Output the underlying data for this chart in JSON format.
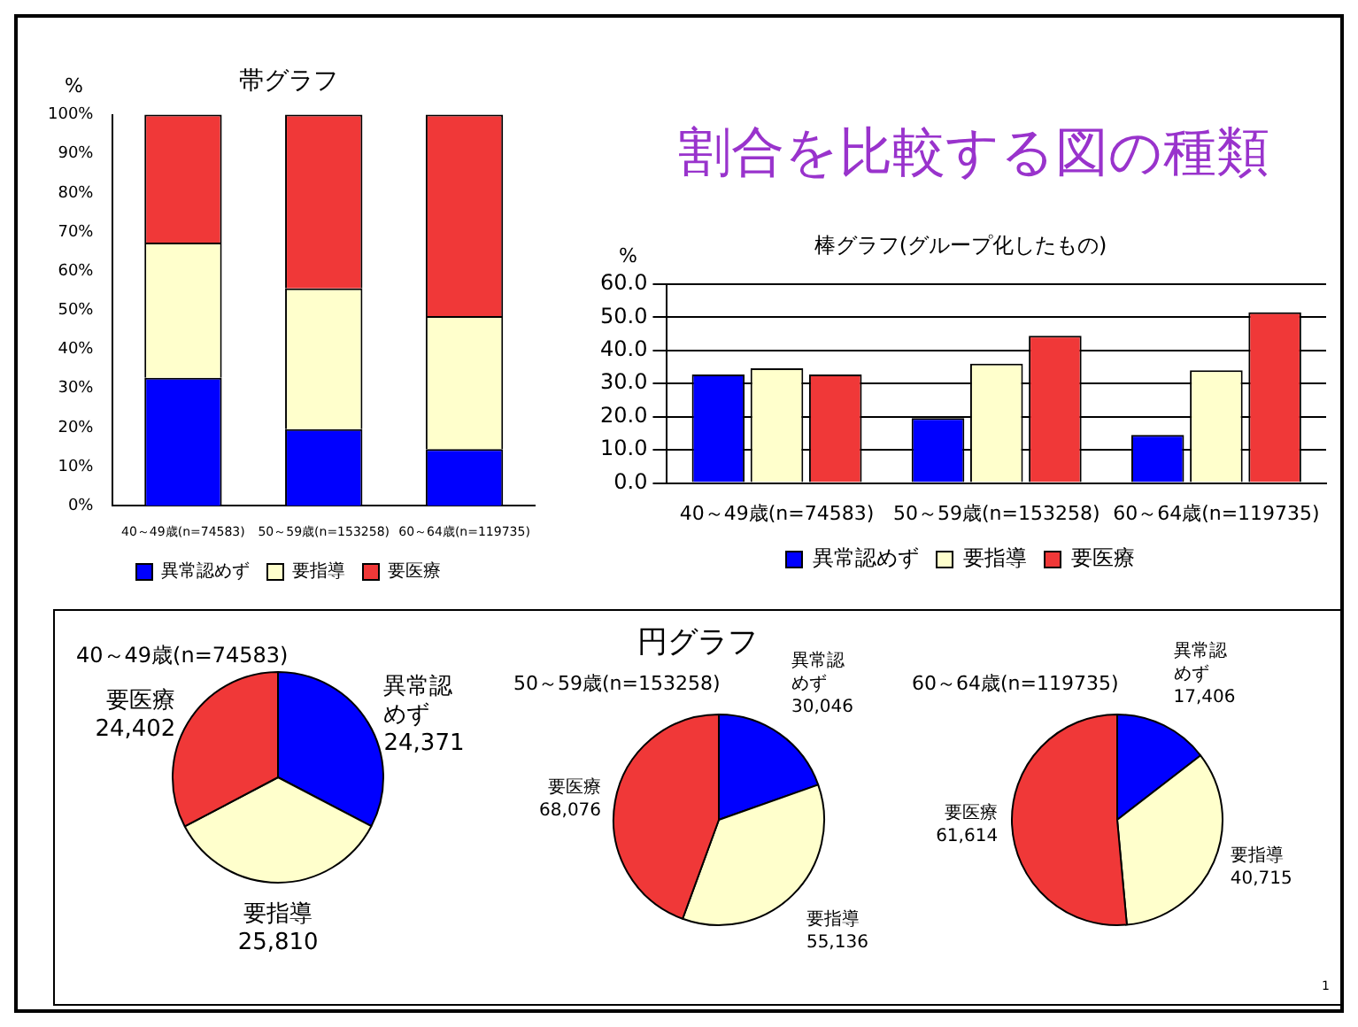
{
  "chart_data": [
    {
      "type": "bar",
      "title": "帯グラフ",
      "ylabel": "%",
      "stacked": true,
      "categories": [
        "40～49歳(n=74583)",
        "50～59歳(n=153258)",
        "60～64歳(n=119735)"
      ],
      "series": [
        {
          "name": "異常認めず",
          "color": "#0000ff",
          "values": [
            32.7,
            19.6,
            14.5
          ]
        },
        {
          "name": "要指導",
          "color": "#ffffcc",
          "values": [
            34.6,
            36.0,
            34.0
          ]
        },
        {
          "name": "要医療",
          "color": "#f03838",
          "values": [
            32.7,
            44.4,
            51.5
          ]
        }
      ],
      "ylim": [
        0,
        100
      ],
      "yticks": [
        {
          "value": 0,
          "label": "0%"
        },
        {
          "value": 10,
          "label": "10%"
        },
        {
          "value": 20,
          "label": "20%"
        },
        {
          "value": 30,
          "label": "30%"
        },
        {
          "value": 40,
          "label": "40%"
        },
        {
          "value": 50,
          "label": "50%"
        },
        {
          "value": 60,
          "label": "60%"
        },
        {
          "value": 70,
          "label": "70%"
        },
        {
          "value": 80,
          "label": "80%"
        },
        {
          "value": 90,
          "label": "90%"
        },
        {
          "value": 100,
          "label": "100%"
        }
      ],
      "grid": false,
      "legend": "bottom"
    },
    {
      "type": "other",
      "title": "割合を比較する図の種類"
    },
    {
      "type": "bar",
      "title": "棒グラフ(グループ化したもの)",
      "ylabel": "%",
      "categories": [
        "40～49歳(n=74583)",
        "50～59歳(n=153258)",
        "60～64歳(n=119735)"
      ],
      "series": [
        {
          "name": "異常認めず",
          "color": "#0000ff",
          "values": [
            32.7,
            19.6,
            14.5
          ]
        },
        {
          "name": "要指導",
          "color": "#ffffcc",
          "values": [
            34.6,
            36.0,
            34.0
          ]
        },
        {
          "name": "要医療",
          "color": "#f03838",
          "values": [
            32.7,
            44.4,
            51.5
          ]
        }
      ],
      "ylim": [
        0,
        60
      ],
      "yticks": [
        {
          "value": 0,
          "label": "0.0"
        },
        {
          "value": 10,
          "label": "10.0"
        },
        {
          "value": 20,
          "label": "20.0"
        },
        {
          "value": 30,
          "label": "30.0"
        },
        {
          "value": 40,
          "label": "40.0"
        },
        {
          "value": 50,
          "label": "50.0"
        },
        {
          "value": 60,
          "label": "60.0"
        }
      ],
      "grid": "y",
      "legend": "bottom"
    },
    {
      "type": "other",
      "title": "円グラフ",
      "annotations": [
        "1"
      ]
    },
    {
      "type": "pie",
      "title": "40～49歳(n=74583)",
      "categories": [
        "異常認めず",
        "要指導",
        "要医療"
      ],
      "values": [
        24371,
        25810,
        24402
      ],
      "value_labels": [
        "24,371",
        "25,810",
        "24,402"
      ],
      "colors": [
        "#0000ff",
        "#ffffcc",
        "#f03838"
      ]
    },
    {
      "type": "pie",
      "title": "50～59歳(n=153258)",
      "categories": [
        "異常認めず",
        "要指導",
        "要医療"
      ],
      "values": [
        30046,
        55136,
        68076
      ],
      "value_labels": [
        "30,046",
        "55,136",
        "68,076"
      ],
      "colors": [
        "#0000ff",
        "#ffffcc",
        "#f03838"
      ]
    },
    {
      "type": "pie",
      "title": "60～64歳(n=119735)",
      "categories": [
        "異常認めず",
        "要指導",
        "要医療"
      ],
      "values": [
        17406,
        40715,
        61614
      ],
      "value_labels": [
        "17,406",
        "40,715",
        "61,614"
      ],
      "colors": [
        "#0000ff",
        "#ffffcc",
        "#f03838"
      ]
    }
  ]
}
